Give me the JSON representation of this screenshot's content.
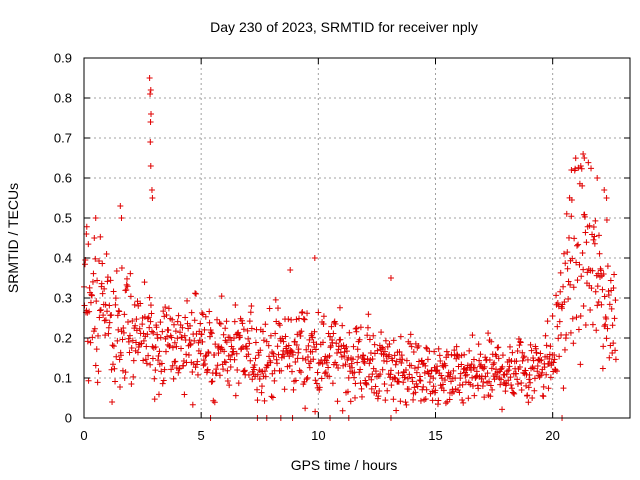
{
  "chart_data": {
    "type": "scatter",
    "title": "Day 230 of 2023, SRMTID for receiver nply",
    "xlabel": "GPS time / hours",
    "ylabel": "SRMTID / TECUs",
    "xlim": [
      0,
      23.3
    ],
    "ylim": [
      0,
      0.9
    ],
    "xticks": [
      0,
      5,
      10,
      15,
      20
    ],
    "xtick_labels": [
      "0",
      "5",
      "10",
      "15",
      "20"
    ],
    "yticks": [
      0,
      0.1,
      0.2,
      0.3,
      0.4,
      0.5,
      0.6,
      0.7,
      0.8,
      0.9
    ],
    "ytick_labels": [
      "0",
      "0.1",
      "0.2",
      "0.3",
      "0.4",
      "0.5",
      "0.6",
      "0.7",
      "0.8",
      "0.9"
    ],
    "grid": true,
    "marker": "+",
    "color": "#e00000",
    "series": [
      {
        "name": "SRMTID",
        "trend_hours": [
          0,
          0.5,
          1,
          1.5,
          2,
          2.5,
          3,
          3.5,
          4,
          5,
          6,
          7,
          8,
          9,
          10,
          11,
          12,
          13,
          14,
          15,
          16,
          17,
          18,
          19,
          19.5,
          20,
          20.5,
          21,
          21.5,
          22,
          22.7
        ],
        "trend_values": [
          0.33,
          0.28,
          0.26,
          0.24,
          0.22,
          0.2,
          0.19,
          0.18,
          0.18,
          0.17,
          0.16,
          0.16,
          0.16,
          0.17,
          0.16,
          0.15,
          0.14,
          0.13,
          0.12,
          0.1,
          0.1,
          0.11,
          0.12,
          0.13,
          0.14,
          0.16,
          0.3,
          0.42,
          0.38,
          0.33,
          0.24
        ],
        "spikes": [
          {
            "x": 2.8,
            "y": 0.85
          },
          {
            "x": 2.85,
            "y": 0.82
          },
          {
            "x": 2.82,
            "y": 0.81
          },
          {
            "x": 2.86,
            "y": 0.76
          },
          {
            "x": 2.84,
            "y": 0.74
          },
          {
            "x": 2.83,
            "y": 0.69
          },
          {
            "x": 2.85,
            "y": 0.63
          },
          {
            "x": 2.9,
            "y": 0.57
          },
          {
            "x": 2.92,
            "y": 0.55
          },
          {
            "x": 1.55,
            "y": 0.53
          },
          {
            "x": 1.6,
            "y": 0.5
          },
          {
            "x": 0.5,
            "y": 0.5
          },
          {
            "x": 0.1,
            "y": 0.46
          },
          {
            "x": 9.85,
            "y": 0.4
          },
          {
            "x": 8.8,
            "y": 0.37
          },
          {
            "x": 13.1,
            "y": 0.35
          },
          {
            "x": 21.3,
            "y": 0.66
          },
          {
            "x": 21.35,
            "y": 0.65
          },
          {
            "x": 21.2,
            "y": 0.63
          },
          {
            "x": 20.8,
            "y": 0.62
          },
          {
            "x": 21.9,
            "y": 0.6
          },
          {
            "x": 22.2,
            "y": 0.57
          },
          {
            "x": 22.3,
            "y": 0.55
          }
        ],
        "zero_points": [
          5.4,
          7.4,
          7.8,
          8.4,
          8.9,
          10.5,
          11.3,
          13.1,
          20.4
        ]
      }
    ]
  }
}
